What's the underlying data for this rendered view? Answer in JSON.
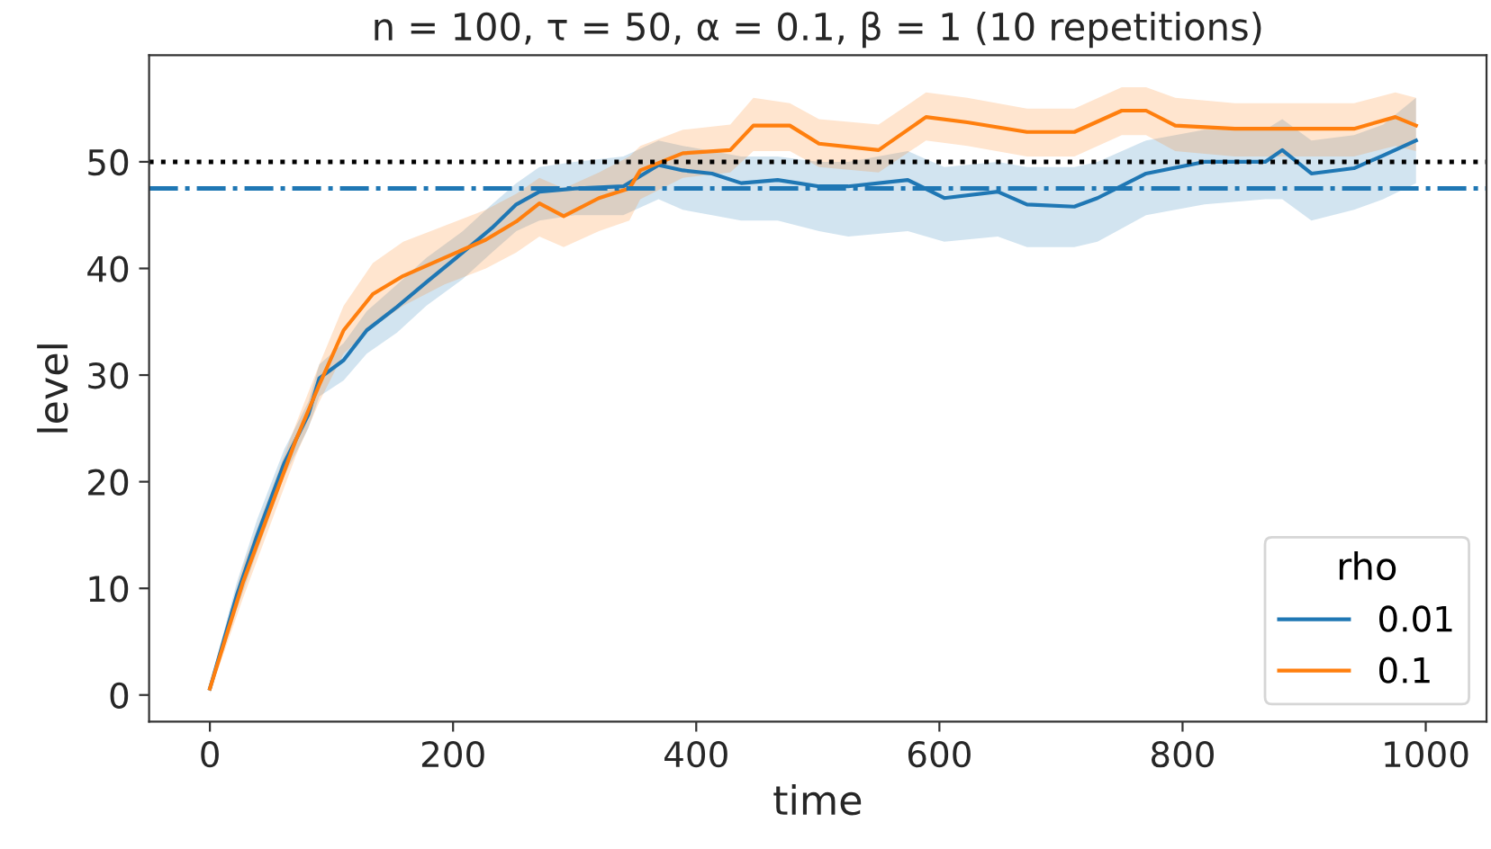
{
  "chart_data": {
    "type": "line",
    "title": "n = 100, τ = 50, α = 0.1, β = 1 (10 repetitions)",
    "xlabel": "time",
    "ylabel": "level",
    "legend_title": "rho",
    "legend": "bottom right",
    "grid": false,
    "xlim": [
      -50,
      1050
    ],
    "xticks": [
      0,
      200,
      400,
      600,
      800,
      1000
    ],
    "ylim": [
      -2.5,
      60
    ],
    "yticks": [
      0,
      10,
      20,
      30,
      40,
      50
    ],
    "ref_lines": [
      {
        "axis": "y",
        "value": 50,
        "color": "#000000",
        "line_style": "dotted"
      },
      {
        "axis": "y",
        "value": 47.5,
        "color": "#1f77b4",
        "line_style": "dashdot"
      }
    ],
    "series": [
      {
        "name": "0.01",
        "color": "#1f77b4",
        "x": [
          0,
          22,
          39,
          61,
          81,
          90,
          110,
          129,
          154,
          178,
          208,
          232,
          252,
          271,
          300,
          340,
          369,
          389,
          413,
          437,
          467,
          501,
          525,
          574,
          604,
          648,
          672,
          711,
          730,
          770,
          818,
          868,
          882,
          906,
          941,
          965,
          992
        ],
        "values": [
          0.6,
          9.3,
          15,
          21.7,
          26.3,
          29.7,
          31.4,
          34.2,
          36.4,
          38.7,
          41.5,
          43.8,
          46,
          47.2,
          47.5,
          47.7,
          49.7,
          49.2,
          48.9,
          48,
          48.3,
          47.7,
          47.7,
          48.3,
          46.6,
          47.2,
          46,
          45.8,
          46.6,
          48.9,
          50,
          50,
          51.1,
          48.9,
          49.4,
          50.6,
          52
        ],
        "lower": [
          0.2,
          8,
          13.5,
          20.5,
          25,
          28,
          29.5,
          32,
          34,
          36.5,
          39,
          41.5,
          43.5,
          44.5,
          45,
          45,
          46.5,
          45.5,
          45,
          44.5,
          44.5,
          43.5,
          43,
          43.5,
          42.5,
          43,
          42,
          42,
          42.5,
          45,
          46,
          46.5,
          46.5,
          44.5,
          45.5,
          46.5,
          48
        ],
        "upper": [
          1,
          10.5,
          16.5,
          23,
          27.5,
          31,
          33,
          36,
          38.5,
          41,
          43.5,
          46,
          48,
          49.5,
          50,
          50.5,
          52,
          51.5,
          51,
          50.5,
          50.5,
          50,
          50,
          51,
          49.5,
          50,
          49.5,
          49.5,
          50,
          52,
          53,
          53,
          54,
          52,
          52.5,
          53.5,
          56
        ]
      },
      {
        "name": "0.1",
        "color": "#ff7f0e",
        "x": [
          0,
          27,
          71,
          90,
          110,
          134,
          159,
          193,
          227,
          252,
          271,
          291,
          320,
          345,
          354,
          389,
          428,
          447,
          477,
          501,
          550,
          589,
          623,
          672,
          711,
          750,
          770,
          794,
          843,
          892,
          941,
          975,
          992
        ],
        "values": [
          0.6,
          10.5,
          24,
          29.1,
          34.2,
          37.6,
          39.3,
          41,
          42.7,
          44.4,
          46.1,
          44.9,
          46.6,
          47.5,
          49.2,
          50.8,
          51.1,
          53.4,
          53.4,
          51.7,
          51.1,
          54.2,
          53.7,
          52.8,
          52.8,
          54.8,
          54.8,
          53.4,
          53.1,
          53.1,
          53.1,
          54.2,
          53.4
        ],
        "lower": [
          0.2,
          9,
          22.5,
          27.5,
          32,
          34.5,
          36.5,
          38.5,
          40,
          41.5,
          43,
          42,
          43.5,
          44.5,
          46.5,
          48.5,
          49,
          51,
          51,
          49.5,
          49,
          52,
          51.5,
          50.5,
          50.5,
          52.5,
          52.5,
          51,
          50.5,
          50.5,
          50.5,
          51.5,
          51
        ],
        "upper": [
          1,
          12,
          25.5,
          31,
          36.5,
          40.5,
          42.5,
          44,
          45.5,
          47,
          48.5,
          47.5,
          49,
          50.5,
          51.5,
          53,
          53.5,
          56,
          55.5,
          54,
          53.5,
          56.5,
          56,
          55,
          55,
          57,
          57,
          56,
          55.5,
          55.5,
          55.5,
          56.5,
          56
        ]
      }
    ]
  }
}
